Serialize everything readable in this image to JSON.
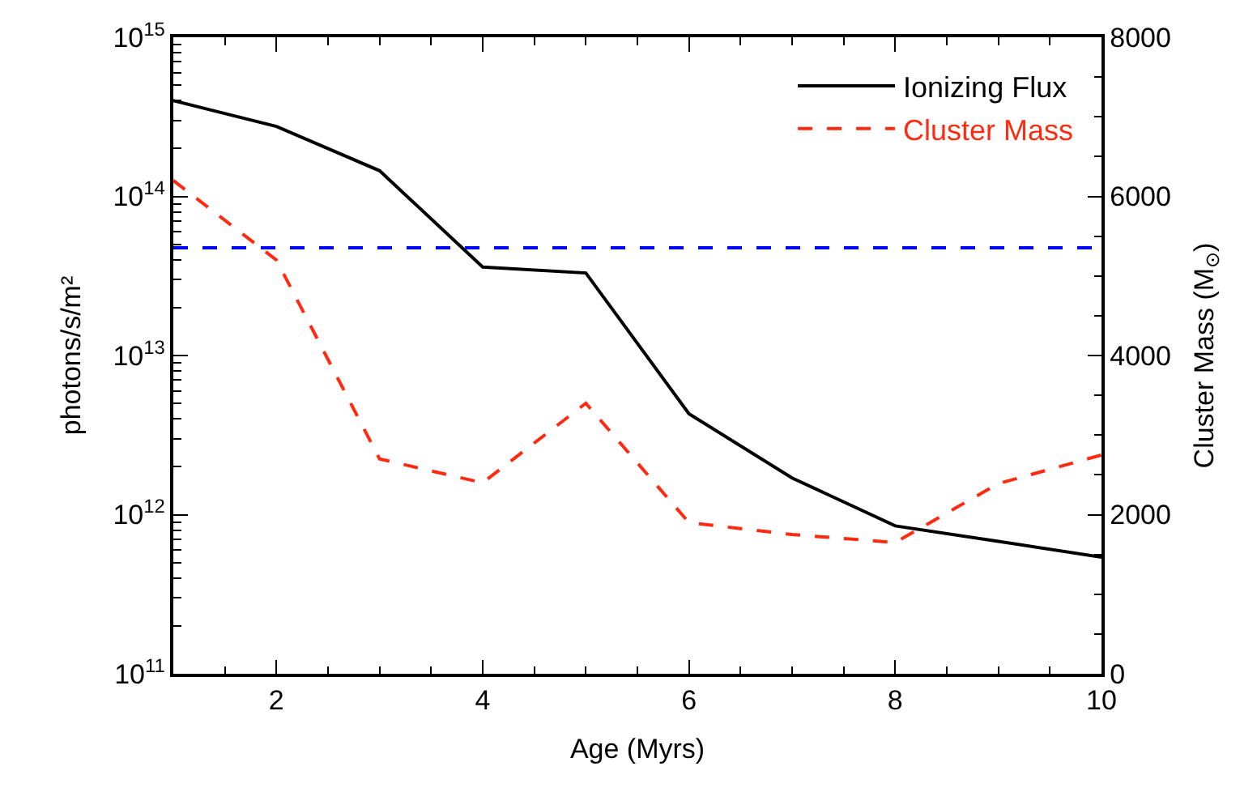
{
  "chart_data": {
    "type": "line",
    "xlabel": "Age (Myrs)",
    "ylabel": "photons/s/m²",
    "y2label": "Cluster Mass (M$_{⊙}$)",
    "x": [
      1,
      2,
      3,
      4,
      5,
      6,
      7,
      8,
      9,
      10
    ],
    "series": [
      {
        "name": "Ionizing Flux",
        "color": "#000000",
        "line_style": "solid",
        "values": [
          400000000000000.0,
          275000000000000.0,
          145000000000000.0,
          36000000000000.0,
          33000000000000.0,
          4300000000000.0,
          1700000000000.0,
          850000000000.0,
          680000000000.0,
          540000000000.0
        ]
      },
      {
        "name": "Cluster Mass",
        "color": "#ff2a10",
        "line_style": "dashed",
        "axis": "y2",
        "values": [
          6200,
          5200,
          2700,
          2400,
          3400,
          1900,
          1750,
          1650,
          2390,
          2750
        ]
      }
    ],
    "ref_lines": [
      {
        "axis": "y",
        "value": 47500000000000.0,
        "color": "#0000ff",
        "line_style": "dashed"
      }
    ],
    "log": "y",
    "xlim": [
      1,
      10
    ],
    "xticks": [
      2,
      4,
      6,
      8,
      10
    ],
    "ylim": [
      100000000000.0,
      1000000000000000.0
    ],
    "yticks": [
      {
        "value": 100000000000.0,
        "label": "10$^{11}$"
      },
      {
        "value": 1000000000000.0,
        "label": "10$^{12}$"
      },
      {
        "value": 10000000000000.0,
        "label": "10$^{13}$"
      },
      {
        "value": 100000000000000.0,
        "label": "10$^{14}$"
      },
      {
        "value": 1000000000000000.0,
        "label": "10$^{15}$"
      }
    ],
    "y2lim": [
      0,
      8000
    ],
    "y2ticks": [
      0,
      2000,
      4000,
      6000,
      8000
    ],
    "legend": "top right",
    "marker": "none"
  }
}
